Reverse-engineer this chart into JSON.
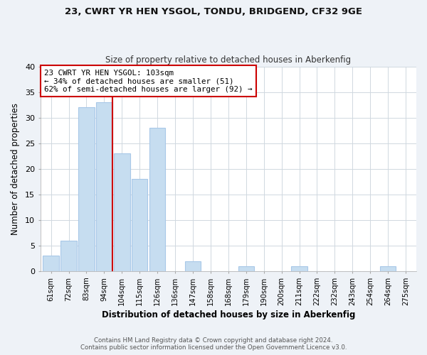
{
  "title1": "23, CWRT YR HEN YSGOL, TONDU, BRIDGEND, CF32 9GE",
  "title2": "Size of property relative to detached houses in Aberkenfig",
  "xlabel": "Distribution of detached houses by size in Aberkenfig",
  "ylabel": "Number of detached properties",
  "bar_color": "#c6ddf0",
  "bar_edge_color": "#a8c8e8",
  "categories": [
    "61sqm",
    "72sqm",
    "83sqm",
    "94sqm",
    "104sqm",
    "115sqm",
    "126sqm",
    "136sqm",
    "147sqm",
    "158sqm",
    "168sqm",
    "179sqm",
    "190sqm",
    "200sqm",
    "211sqm",
    "222sqm",
    "232sqm",
    "243sqm",
    "254sqm",
    "264sqm",
    "275sqm"
  ],
  "values": [
    3,
    6,
    32,
    33,
    23,
    18,
    28,
    0,
    2,
    0,
    0,
    1,
    0,
    0,
    1,
    0,
    0,
    0,
    0,
    1,
    0
  ],
  "ylim": [
    0,
    40
  ],
  "yticks": [
    0,
    5,
    10,
    15,
    20,
    25,
    30,
    35,
    40
  ],
  "annotation_line1": "23 CWRT YR HEN YSGOL: 103sqm",
  "annotation_line2": "← 34% of detached houses are smaller (51)",
  "annotation_line3": "62% of semi-detached houses are larger (92) →",
  "vline_color": "#cc0000",
  "box_edge_color": "#cc0000",
  "footer1": "Contains HM Land Registry data © Crown copyright and database right 2024.",
  "footer2": "Contains public sector information licensed under the Open Government Licence v3.0.",
  "background_color": "#eef2f7",
  "plot_bg_color": "#ffffff",
  "grid_color": "#d0d8e0"
}
